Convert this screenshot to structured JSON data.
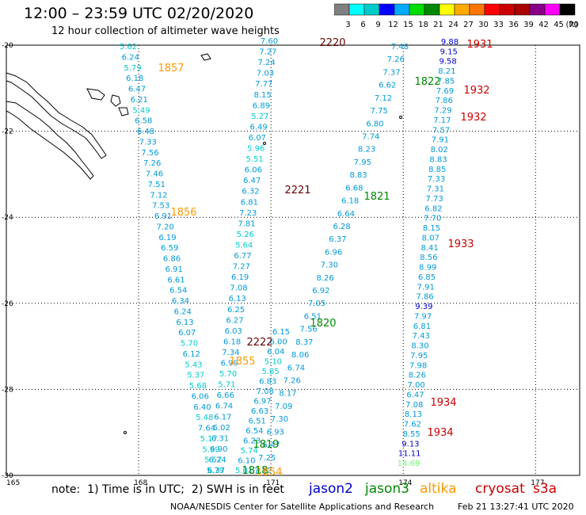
{
  "title": "12:00 – 23:59 UTC 02/20/2020",
  "subtitle": "12 hour collection of altimeter wave heights",
  "scale": {
    "ticks": [
      "3",
      "6",
      "9",
      "12",
      "15",
      "18",
      "21",
      "24",
      "27",
      "30",
      "33",
      "36",
      "39",
      "42",
      "45",
      "70",
      "(ft)"
    ],
    "colors": [
      "#808080",
      "#00ffff",
      "#00cccc",
      "#0000ff",
      "#00aaff",
      "#00dd00",
      "#008800",
      "#ffff00",
      "#ffaa00",
      "#ff7700",
      "#ff0000",
      "#cc0000",
      "#aa0000",
      "#880088",
      "#ff00ff",
      "#000000"
    ]
  },
  "map": {
    "lon_ticks": [
      "165",
      "168",
      "171",
      "174",
      "177"
    ],
    "lat_ticks": [
      "-20",
      "-22",
      "-24",
      "-26",
      "-28",
      "-30"
    ],
    "lon_range": [
      165,
      178
    ],
    "lat_range": [
      -20,
      -30
    ],
    "grid_lons": [
      168,
      171,
      174,
      177
    ],
    "grid_lats": [
      -22,
      -24,
      -26,
      -28
    ]
  },
  "mission_colors": {
    "jason2": "#0000cc",
    "jason3": "#008800",
    "altika": "#ff9900",
    "cryosat": "#cc0000",
    "s3a": "#cc0000",
    "time2220": "#660000"
  },
  "value_colors": {
    "lt6": "#00cccc",
    "6to9": "#0099dd",
    "9to12": "#0000cc",
    "gt12": "#66ff66"
  },
  "tracks": [
    {
      "name": "altika-1857",
      "x0": 162,
      "y0": 62,
      "x1": 272,
      "y1": 597,
      "values": [
        "5.62",
        "6.24",
        "5.79",
        "6.18",
        "6.47",
        "6.21",
        "5.49",
        "6.58",
        "6.48",
        "7.33",
        "7.56",
        "7.26",
        "7.46",
        "7.51",
        "7.12",
        "7.53",
        "6.91",
        "7.20",
        "6.19",
        "6.59",
        "6.86",
        "6.91",
        "6.61",
        "6.54",
        "6.34",
        "6.24",
        "6.13",
        "6.07",
        "5.70",
        "6.12",
        "5.43",
        "5.37",
        "5.68",
        "6.06",
        "6.40",
        "5.48",
        "7.64",
        "5.17",
        "5.99",
        "5.57",
        "5.79"
      ]
    },
    {
      "name": "sat-2220",
      "x0": 340,
      "y0": 55,
      "x1": 273,
      "y1": 597,
      "values": [
        "7.60",
        "7.27",
        "7.24",
        "7.03",
        "7.77",
        "8.15",
        "6.89",
        "5.27",
        "6.49",
        "6.07",
        "5.96",
        "5.51",
        "6.06",
        "6.47",
        "6.32",
        "6.81",
        "7.23",
        "7.81",
        "5.26",
        "5.64",
        "6.77",
        "7.27",
        "6.19",
        "7.08",
        "6.13",
        "6.25",
        "6.27",
        "6.03",
        "6.18",
        "7.34",
        "6.99",
        "5.70",
        "5.71",
        "6.66",
        "6.74",
        "6.17",
        "6.02",
        "6.31",
        "6.90",
        "6.24",
        "6.37"
      ]
    },
    {
      "name": "sat-1855",
      "x0": 355,
      "y0": 422,
      "x1": 308,
      "y1": 597,
      "values": [
        "6.15",
        "6.00",
        "6.04",
        "5.10",
        "5.85",
        "6.83",
        "7.08",
        "6.97",
        "6.63",
        "6.51",
        "6.54",
        "6.23",
        "5.74",
        "6.10",
        "5.01"
      ]
    },
    {
      "name": "jason3-1819",
      "x0": 505,
      "y0": 62,
      "x1": 332,
      "y1": 597,
      "values": [
        "7.48",
        "7.26",
        "7.37",
        "6.62",
        "7.12",
        "7.75",
        "6.80",
        "7.74",
        "8.23",
        "7.95",
        "8.83",
        "6.68",
        "6.18",
        "6.64",
        "6.28",
        "6.37",
        "6.96",
        "7.30",
        "8.26",
        "6.92",
        "7.05",
        "6.51",
        "7.56",
        "8.37",
        "8.06",
        "6.74",
        "7.26",
        "8.17",
        "7.09",
        "7.30",
        "6.93",
        "6.47",
        "7.25",
        "7.12"
      ]
    },
    {
      "name": "cryosat-1931",
      "x0": 568,
      "y0": 56,
      "x1": 516,
      "y1": 588,
      "values": [
        "9.88",
        "9.15",
        "9.58",
        "8.21",
        "7.85",
        "7.69",
        "7.86",
        "7.29",
        "7.17",
        "7.57",
        "7.91",
        "8.02",
        "8.83",
        "8.85",
        "7.33",
        "7.31",
        "7.73",
        "6.82",
        "7.70",
        "8.15",
        "8.07",
        "8.41",
        "8.56",
        "8.99",
        "6.85",
        "7.91",
        "7.86",
        "9.39",
        "7.97",
        "6.81",
        "7.43",
        "8.30",
        "7.95",
        "7.98",
        "8.26",
        "7.00",
        "6.47",
        "7.08",
        "8.13",
        "7.62",
        "8.55",
        "9.13",
        "11.11",
        "14.69"
      ]
    }
  ],
  "time_labels": [
    {
      "text": "1857",
      "mission": "altika"
    },
    {
      "text": "2220",
      "mission": "time2220"
    },
    {
      "text": "1931",
      "mission": "cryosat"
    },
    {
      "text": "1822",
      "mission": "jason3"
    },
    {
      "text": "1932",
      "mission": "cryosat"
    },
    {
      "text": "1932",
      "mission": "cryosat"
    },
    {
      "text": "2221",
      "mission": "time2220"
    },
    {
      "text": "1821",
      "mission": "jason3"
    },
    {
      "text": "1856",
      "mission": "altika"
    },
    {
      "text": "1933",
      "mission": "cryosat"
    },
    {
      "text": "1820",
      "mission": "jason3"
    },
    {
      "text": "2222",
      "mission": "time2220"
    },
    {
      "text": "1855",
      "mission": "altika"
    },
    {
      "text": "1934",
      "mission": "cryosat"
    },
    {
      "text": "1934",
      "mission": "cryosat"
    },
    {
      "text": "1819",
      "mission": "jason3"
    },
    {
      "text": "1818",
      "mission": "jason3"
    },
    {
      "text": "1854",
      "mission": "altika"
    }
  ],
  "footer": {
    "note": "note:  1) Time is in UTC;  2) SWH is in feet",
    "missions": [
      {
        "label": "jason2",
        "color": "#0000cc"
      },
      {
        "label": "jason3",
        "color": "#008800"
      },
      {
        "label": "altika",
        "color": "#ff9900"
      },
      {
        "label": "cryosat",
        "color": "#cc0000"
      },
      {
        "label": "s3a",
        "color": "#cc0000"
      }
    ],
    "credit": "NOAA/NESDIS Center for Satellite Applications and Research",
    "timestamp": "Feb 21 13:27:41 UTC 2020"
  }
}
